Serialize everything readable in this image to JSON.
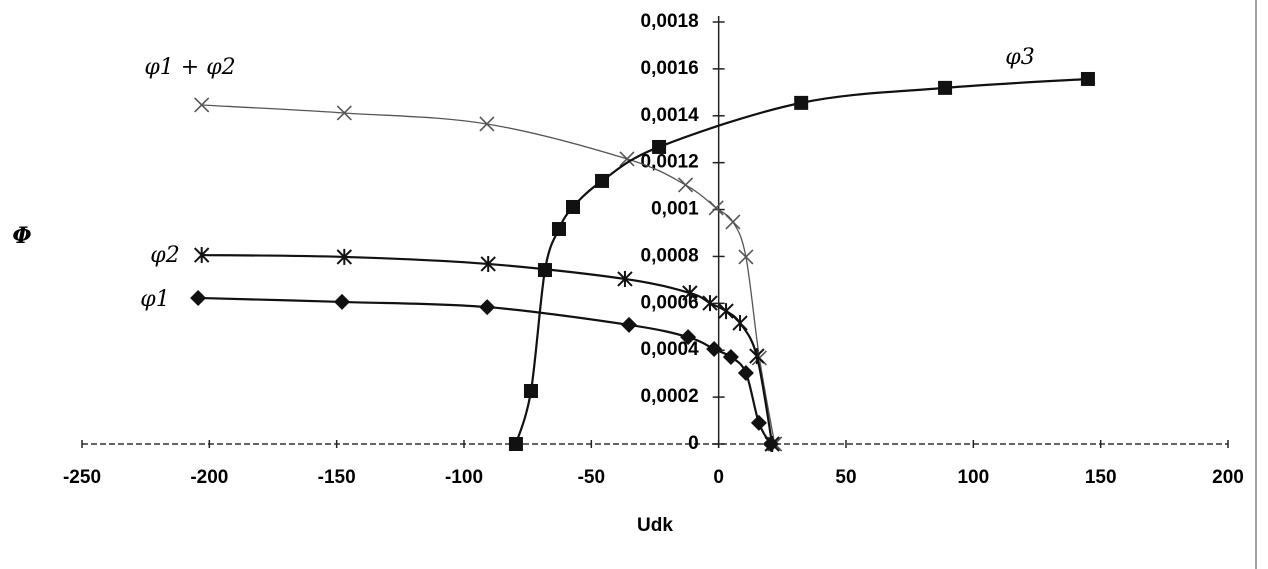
{
  "chart_data": {
    "type": "line",
    "x_label": "Udk",
    "y_label": "Φ",
    "xlim": [
      -250,
      200
    ],
    "xticks": [
      -250,
      -200,
      -150,
      -100,
      -50,
      0,
      50,
      100,
      150,
      200
    ],
    "ylim": [
      0,
      0.0018
    ],
    "yticks": [
      0,
      {
        "value": 0.0002,
        "label": "0,0002"
      },
      {
        "value": 0.0004,
        "label": "0,0004"
      },
      {
        "value": 0.0006,
        "label": "0,0006"
      },
      {
        "value": 0.0008,
        "label": "0,0008"
      },
      {
        "value": 0.001,
        "label": "0,001"
      },
      {
        "value": 0.0012,
        "label": "0,0012"
      },
      {
        "value": 0.0014,
        "label": "0,0014"
      },
      {
        "value": 0.0016,
        "label": "0,0016"
      },
      {
        "value": 0.0018,
        "label": "0,0018"
      }
    ],
    "series": [
      {
        "name": "φ1 + φ2",
        "color": "#555555",
        "marker": "x",
        "x": [
          -203,
          -147,
          -91,
          -36,
          -13,
          -1,
          5.6,
          10.7,
          16,
          22
        ],
        "values": [
          0.001446,
          0.001412,
          0.001365,
          0.001216,
          0.001105,
          0.001007,
          0.000947,
          0.000798,
          0.000367,
          0
        ]
      },
      {
        "name": "φ2",
        "color": "#111111",
        "marker": "star",
        "x": [
          -203,
          -147,
          -90.5,
          -36.8,
          -11.3,
          -3.4,
          2.9,
          8.4,
          15,
          21
        ],
        "values": [
          0.000806,
          0.000798,
          0.000768,
          0.000704,
          0.000644,
          0.000601,
          0.000567,
          0.000516,
          0.000375,
          0
        ]
      },
      {
        "name": "φ1",
        "color": "#111111",
        "marker": "diamond",
        "x": [
          -204.4,
          -147.9,
          -90.9,
          -35.2,
          -12,
          -1.8,
          4.8,
          10.7,
          15.8,
          20.5
        ],
        "values": [
          0.000623,
          0.000606,
          0.000584,
          0.000508,
          0.000456,
          0.000405,
          0.000371,
          0.000303,
          9e-05,
          0
        ]
      },
      {
        "name": "φ3",
        "color": "#111111",
        "marker": "square",
        "x": [
          -79.6,
          -73.7,
          -68.2,
          -62.7,
          -57.2,
          -45.8,
          -23.4,
          32.4,
          88.9,
          145
        ],
        "values": [
          0,
          0.000226,
          0.000742,
          0.000917,
          0.001011,
          0.001122,
          0.001267,
          0.001455,
          0.001519,
          0.001557
        ]
      }
    ]
  }
}
